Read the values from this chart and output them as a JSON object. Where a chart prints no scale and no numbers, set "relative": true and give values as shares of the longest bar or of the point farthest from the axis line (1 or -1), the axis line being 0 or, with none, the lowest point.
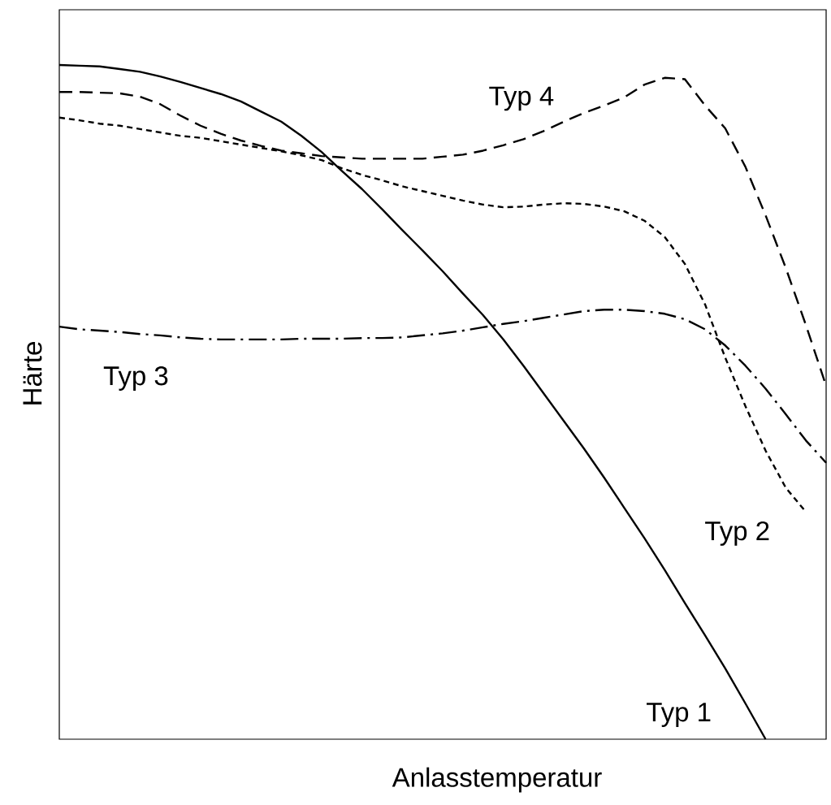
{
  "chart_data": {
    "type": "line",
    "relative": true,
    "xlabel": "Anlasstemperatur",
    "ylabel": "Härte",
    "categories": [
      null,
      null,
      null,
      null,
      null,
      null,
      null,
      null,
      null,
      null,
      null,
      null,
      null,
      null,
      null,
      null,
      null,
      null,
      null,
      null,
      null,
      null,
      null,
      null,
      null,
      null,
      null,
      null,
      null,
      null,
      null,
      null,
      null,
      null,
      null,
      null,
      null,
      null,
      null
    ],
    "series": [
      {
        "name": "Typ 1",
        "color": "#000000",
        "line_style": "solid",
        "values": [
          1.0,
          0.999,
          0.998,
          0.994,
          0.99,
          0.983,
          0.975,
          0.966,
          0.957,
          0.946,
          0.931,
          0.916,
          0.895,
          0.871,
          0.843,
          0.816,
          0.786,
          0.755,
          0.725,
          0.694,
          0.661,
          0.629,
          0.593,
          0.554,
          0.513,
          0.472,
          0.431,
          0.388,
          0.343,
          0.298,
          0.251,
          0.202,
          0.154,
          0.105,
          0.053,
          0.0,
          null,
          null,
          null
        ]
      },
      {
        "name": "Typ 2",
        "color": "#000000",
        "line_style": "dotted",
        "values": [
          0.922,
          0.918,
          0.913,
          0.91,
          0.905,
          0.9,
          0.895,
          0.892,
          0.887,
          0.882,
          0.877,
          0.872,
          0.866,
          0.859,
          0.847,
          0.837,
          0.829,
          0.82,
          0.813,
          0.806,
          0.799,
          0.793,
          0.789,
          0.79,
          0.793,
          0.795,
          0.794,
          0.79,
          0.783,
          0.769,
          0.745,
          0.705,
          0.645,
          0.566,
          0.494,
          0.428,
          0.373,
          0.337,
          null
        ]
      },
      {
        "name": "Typ 3",
        "color": "#000000",
        "line_style": "dashdot",
        "values": [
          0.612,
          0.608,
          0.606,
          0.604,
          0.601,
          0.599,
          0.596,
          0.594,
          0.593,
          0.593,
          0.593,
          0.593,
          0.594,
          0.594,
          0.594,
          0.595,
          0.595,
          0.596,
          0.599,
          0.602,
          0.606,
          0.611,
          0.616,
          0.62,
          0.625,
          0.63,
          0.635,
          0.637,
          0.637,
          0.635,
          0.631,
          0.623,
          0.608,
          0.584,
          0.554,
          0.52,
          0.482,
          0.443,
          0.41
        ]
      },
      {
        "name": "Typ 4",
        "color": "#000000",
        "line_style": "dashed",
        "values": [
          0.96,
          0.96,
          0.959,
          0.958,
          0.953,
          0.942,
          0.925,
          0.91,
          0.898,
          0.888,
          0.88,
          0.873,
          0.869,
          0.865,
          0.863,
          0.861,
          0.861,
          0.861,
          0.861,
          0.864,
          0.867,
          0.873,
          0.881,
          0.89,
          0.902,
          0.916,
          0.929,
          0.94,
          0.952,
          0.971,
          0.981,
          0.979,
          0.94,
          0.906,
          0.849,
          0.777,
          0.699,
          0.614,
          0.524
        ]
      }
    ]
  }
}
